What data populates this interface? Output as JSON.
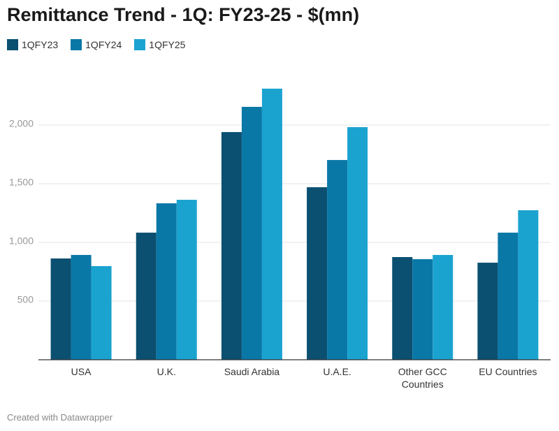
{
  "chart_data": {
    "type": "bar",
    "title": "Remittance Trend - 1Q: FY23-25 - $(mn)",
    "categories": [
      "USA",
      "U.K.",
      "Saudi Arabia",
      "U.A.E.",
      "Other GCC Countries",
      "EU Countries"
    ],
    "series": [
      {
        "name": "1QFY23",
        "color": "#0b4f71",
        "values": [
          863,
          1083,
          1940,
          1470,
          875,
          827
        ]
      },
      {
        "name": "1QFY24",
        "color": "#0a78a6",
        "values": [
          893,
          1333,
          2155,
          1702,
          857,
          1083
        ]
      },
      {
        "name": "1QFY25",
        "color": "#1ba3d0",
        "values": [
          798,
          1363,
          2310,
          1982,
          893,
          1274
        ]
      }
    ],
    "ylim": [
      0,
      2500
    ],
    "yticks": [
      500,
      {
        "value": 1000,
        "label": "1,000"
      },
      {
        "value": 1500,
        "label": "1,500"
      },
      {
        "value": 2000,
        "label": "2,000"
      }
    ],
    "grid": true,
    "credit": "Created with Datawrapper"
  }
}
